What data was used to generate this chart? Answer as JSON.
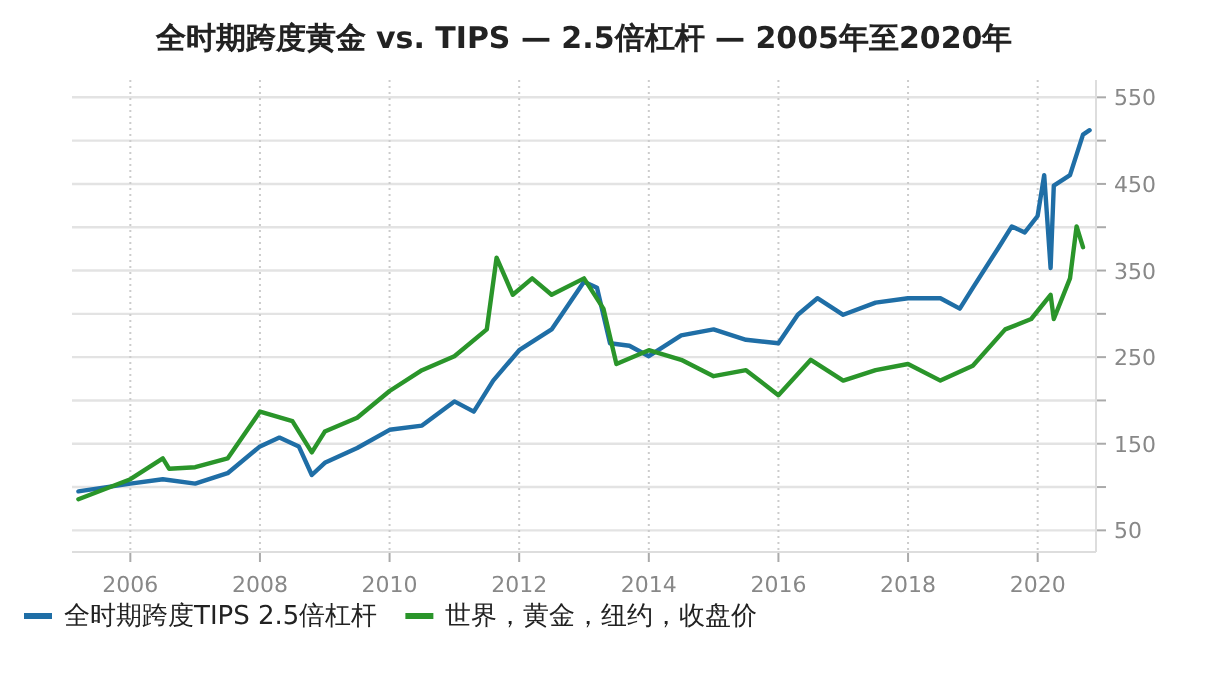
{
  "chart_data": {
    "type": "line",
    "title": "全时期跨度黄金 vs. TIPS — 2.5倍杠杆 — 2005年至2020年",
    "xlim": [
      2005.1,
      2020.9
    ],
    "xticks": [
      2006,
      2008,
      2010,
      2012,
      2014,
      2016,
      2018,
      2020
    ],
    "ylim": [
      25,
      570
    ],
    "yticks": [
      50,
      {
        "value": 100,
        "label": null
      },
      150,
      {
        "value": 200,
        "label": null
      },
      250,
      {
        "value": 300,
        "label": null
      },
      350,
      {
        "value": 400,
        "label": null
      },
      450,
      {
        "value": 500,
        "label": null
      },
      550
    ],
    "grid": true,
    "legend": "bottom",
    "marker": "none",
    "line_style": "solid",
    "series": [
      {
        "name": "全时期跨度TIPS 2.5倍杠杆",
        "color": "#1f6ea6",
        "x": [
          2005.2,
          2006,
          2006.5,
          2007,
          2007.5,
          2008,
          2008.3,
          2008.6,
          2008.8,
          2009,
          2009.5,
          2010,
          2010.5,
          2011,
          2011.3,
          2011.6,
          2012,
          2012.5,
          2013,
          2013.2,
          2013.4,
          2013.7,
          2014,
          2014.5,
          2015,
          2015.5,
          2016,
          2016.3,
          2016.6,
          2017,
          2017.5,
          2018,
          2018.5,
          2018.8,
          2019,
          2019.4,
          2019.6,
          2019.8,
          2020,
          2020.1,
          2020.2,
          2020.25,
          2020.5,
          2020.7,
          2020.8
        ],
        "values": [
          95,
          104,
          109,
          104,
          116,
          147,
          157,
          147,
          114,
          128,
          145,
          166,
          171,
          199,
          187,
          223,
          258,
          282,
          337,
          330,
          266,
          263,
          251,
          275,
          282,
          270,
          266,
          299,
          318,
          299,
          313,
          318,
          318,
          306,
          330,
          377,
          401,
          394,
          413,
          460,
          353,
          448,
          460,
          507,
          512
        ]
      },
      {
        "name": "世界，黄金，纽约，收盘价",
        "color": "#2a952a",
        "x": [
          2005.2,
          2006,
          2006.5,
          2006.6,
          2007,
          2007.5,
          2008,
          2008.5,
          2008.8,
          2009,
          2009.5,
          2010,
          2010.5,
          2011,
          2011.5,
          2011.65,
          2011.9,
          2012.2,
          2012.5,
          2013,
          2013.3,
          2013.5,
          2014,
          2014.5,
          2015,
          2015.5,
          2016,
          2016.5,
          2017,
          2017.5,
          2018,
          2018.5,
          2019,
          2019.5,
          2019.9,
          2020.2,
          2020.25,
          2020.5,
          2020.6,
          2020.7
        ],
        "values": [
          86,
          109,
          133,
          121,
          123,
          133,
          187,
          176,
          140,
          164,
          180,
          211,
          235,
          251,
          282,
          365,
          322,
          341,
          322,
          341,
          306,
          242,
          258,
          247,
          228,
          235,
          206,
          247,
          223,
          235,
          242,
          223,
          240,
          282,
          294,
          322,
          294,
          341,
          401,
          377
        ]
      }
    ]
  }
}
